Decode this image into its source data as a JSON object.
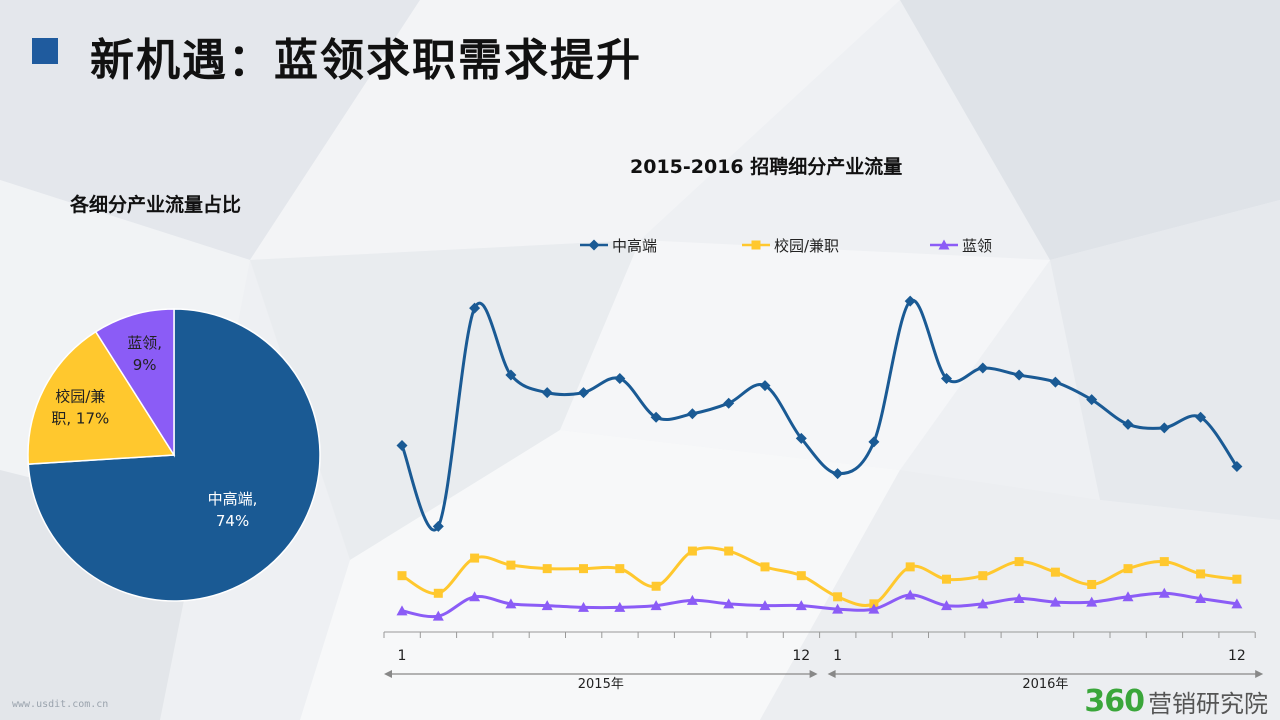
{
  "page": {
    "title": "新机遇：蓝领求职需求提升",
    "brand_number": "360",
    "brand_text": "营销研究院",
    "watermark": "www.usdit.com.cn"
  },
  "colors": {
    "title_square": "#1f5b9e",
    "blue": "#1a5a94",
    "yellow": "#ffc82e",
    "purple": "#8b5cf6"
  },
  "chart_data": [
    {
      "type": "pie",
      "title": "各细分产业流量占比",
      "slices": [
        {
          "name": "中高端",
          "value": 74,
          "label_line1": "中高端,",
          "label_line2": "74%",
          "color": "#1a5a94"
        },
        {
          "name": "校园/兼职",
          "value": 17,
          "label_line1": "校园/兼",
          "label_line2": "职, 17%",
          "color": "#ffc82e"
        },
        {
          "name": "蓝领",
          "value": 9,
          "label_line1": "蓝领,",
          "label_line2": "9%",
          "color": "#8b5cf6"
        }
      ]
    },
    {
      "type": "line",
      "title": "2015-2016 招聘细分产业流量",
      "x_tick_labels": {
        "0": "1",
        "11": "12",
        "12": "1",
        "23": "12"
      },
      "year_labels": [
        "2015年",
        "2016年"
      ],
      "ylim": [
        0,
        100
      ],
      "legend_position": "top",
      "series": [
        {
          "name": "中高端",
          "color": "#1a5a94",
          "marker": "diamond",
          "values": [
            53,
            30,
            92,
            73,
            68,
            68,
            72,
            61,
            62,
            65,
            70,
            55,
            45,
            54,
            94,
            72,
            75,
            73,
            71,
            66,
            59,
            58,
            61,
            47
          ]
        },
        {
          "name": "校园/兼职",
          "color": "#ffc82e",
          "marker": "square",
          "values": [
            16,
            11,
            21,
            19,
            18,
            18,
            18,
            13,
            23,
            23,
            18.5,
            16,
            10,
            8,
            18.5,
            15,
            16,
            20,
            17,
            13.5,
            18,
            20,
            16.5,
            15
          ]
        },
        {
          "name": "蓝领",
          "color": "#8b5cf6",
          "marker": "triangle",
          "values": [
            6,
            4.5,
            10,
            8,
            7.5,
            7,
            7,
            7.5,
            9,
            8,
            7.5,
            7.5,
            6.5,
            6.5,
            10.5,
            7.5,
            8,
            9.5,
            8.5,
            8.5,
            10,
            11,
            9.5,
            8
          ]
        }
      ]
    }
  ]
}
